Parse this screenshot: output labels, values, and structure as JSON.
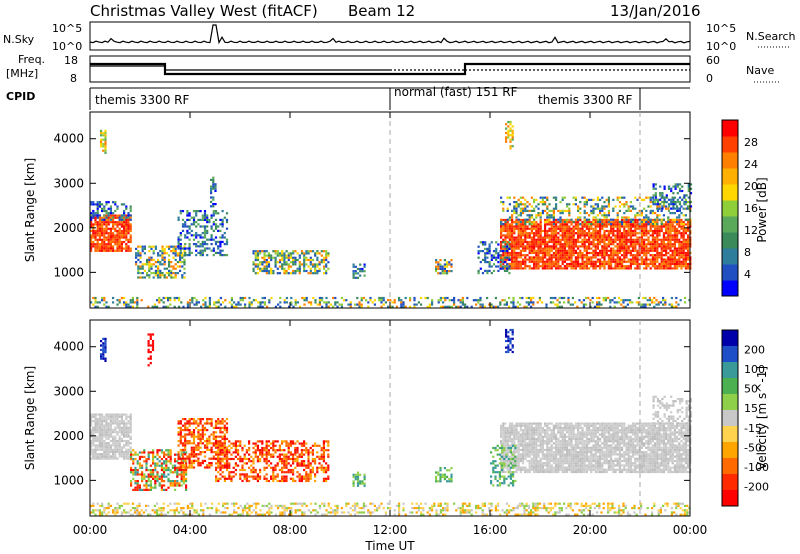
{
  "header": {
    "title": "Christmas Valley West (fitACF)",
    "beam": "Beam 12",
    "date": "13/Jan/2016"
  },
  "noise_panel": {
    "left_label": "N.Sky",
    "right_label": "N.Search",
    "left_ticks": [
      "10^5",
      "10^0"
    ],
    "right_ticks": [
      "10^5",
      "10^0"
    ]
  },
  "freq_panel": {
    "left_label_1": "Freq.",
    "left_label_2": "[MHz]",
    "left_ticks": [
      "18",
      "8"
    ],
    "right_label": "Nave",
    "right_ticks": [
      "60",
      "0"
    ]
  },
  "cpid": {
    "label": "CPID",
    "segments": [
      {
        "text": "themis 3300 RF",
        "start_hour": 0
      },
      {
        "text": "normal (fast) 151 RF",
        "start_hour": 12
      },
      {
        "text": "themis 3300 RF",
        "start_hour": 18.5
      }
    ],
    "dividers": [
      12,
      22
    ]
  },
  "chart_data": [
    {
      "type": "heatmap",
      "name": "power",
      "ylabel": "Slant Range [km]",
      "ylim": [
        200,
        4600
      ],
      "yticks": [
        1000,
        2000,
        3000,
        4000
      ],
      "x": {
        "label": "Time UT",
        "range_hours": [
          0,
          24
        ],
        "ticks": [
          "00:00",
          "04:00",
          "08:00",
          "12:00",
          "16:00",
          "20:00",
          "00:00"
        ]
      },
      "colorbar": {
        "label": "Power [dB]",
        "ticks": [
          "4",
          "8",
          "12",
          "16",
          "20",
          "24",
          "28"
        ],
        "min": 0,
        "max": 32,
        "colors": [
          "#0000ff",
          "#1f4fc0",
          "#2e7d9c",
          "#3a8a5a",
          "#5aa85a",
          "#8fcf3a",
          "#ffd700",
          "#ffb000",
          "#ff8000",
          "#ff4000",
          "#ff0000"
        ]
      }
    },
    {
      "type": "heatmap",
      "name": "velocity",
      "ylabel": "Slant Range [km]",
      "ylim": [
        200,
        4600
      ],
      "yticks": [
        1000,
        2000,
        3000,
        4000
      ],
      "x": {
        "label": "Time UT",
        "range_hours": [
          0,
          24
        ],
        "ticks": [
          "00:00",
          "04:00",
          "08:00",
          "12:00",
          "16:00",
          "20:00",
          "00:00"
        ]
      },
      "colorbar": {
        "label": "Velocity [m s^-1]",
        "ticks": [
          "200",
          "100",
          "50",
          "15",
          "-15",
          "-50",
          "-100",
          "-200"
        ],
        "min": -250,
        "max": 250,
        "colors": [
          "#0000aa",
          "#1f4fc8",
          "#3a9a9a",
          "#4caf50",
          "#8fd04a",
          "#c8c8c8",
          "#ffd34d",
          "#ffa500",
          "#ff6a00",
          "#ff2a00",
          "#ff0000"
        ]
      }
    }
  ]
}
